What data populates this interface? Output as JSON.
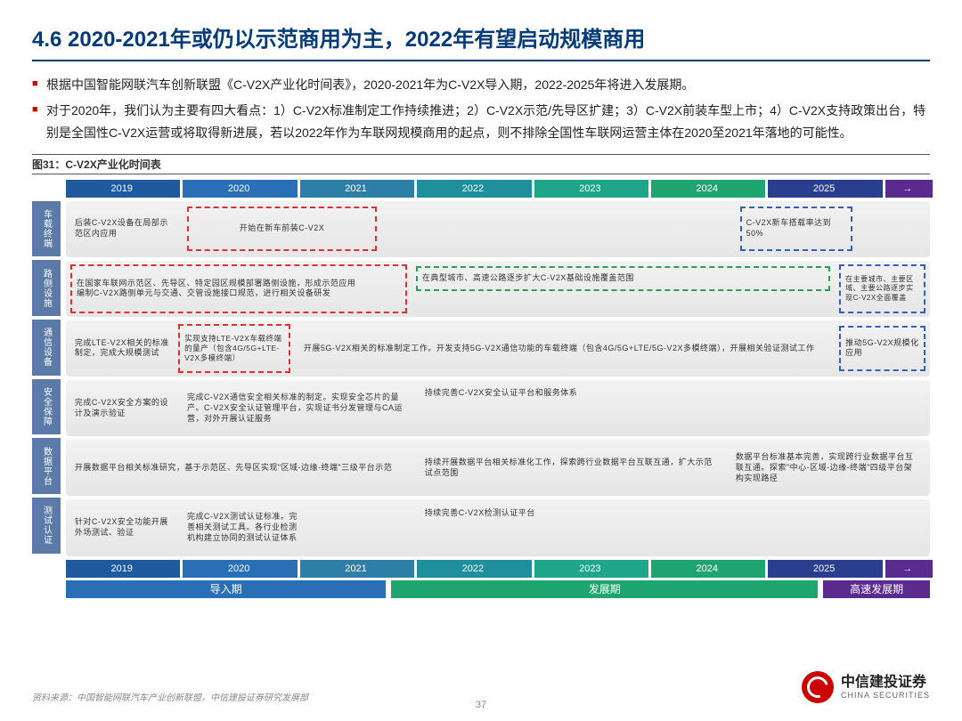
{
  "title": "4.6 2020-2021年或仍以示范商用为主，2022年有望启动规模商用",
  "bullets": [
    "根据中国智能网联汽车创新联盟《C-V2X产业化时间表》，2020-2021年为C-V2X导入期，2022-2025年将进入发展期。",
    "对于2020年，我们认为主要有四大看点：1）C-V2X标准制定工作持续推进；2）C-V2X示范/先导区扩建；3）C-V2X前装车型上市；4）C-V2X支持政策出台，特别是全国性C-V2X运营或将取得新进展，若以2022年作为车联网规模商用的起点，则不排除全国性车联网运营主体在2020至2021年落地的可能性。"
  ],
  "figLabel": "图31：C-V2X产业化时间表",
  "years": [
    "2019",
    "2020",
    "2021",
    "2022",
    "2023",
    "2024",
    "2025",
    "→"
  ],
  "yearClasses": [
    "yc-2019",
    "yc-2020",
    "yc-2021",
    "yc-2022",
    "yc-2023",
    "yc-2024",
    "yc-2025",
    "yc-end"
  ],
  "rowLabels": [
    "车载终端",
    "路侧设施",
    "通信设备",
    "安全保障",
    "数据平台",
    "测试认证"
  ],
  "rows": {
    "r0": {
      "c0": "后装C-V2X设备在局部示范区内应用",
      "c1": "开始在新车前装C-V2X",
      "c2": "C-V2X新车搭载率达到50%"
    },
    "r1": {
      "c0": "在国家车联网示范区、先导区、特定园区规模部署路侧设施，形成示范应用\n编制C-V2X路侧单元与交通、交管设施接口规范，进行相关设备研发",
      "c1": "在典型城市、高速公路逐步扩大C-V2X基础设施覆盖范围",
      "c2": "在主要城市、主要区域、主要公路逐步实现C-V2X全面覆盖"
    },
    "r2": {
      "c0": "完成LTE-V2X相关的标准制定，完成大规模测试",
      "c1": "实现支持LTE-V2X车载终端的量产（包含4G/5G+LTE-V2X多模终端）",
      "c2": "开展5G-V2X相关的标准制定工作。开发支持5G-V2X通信功能的车载终端（包含4G/5G+LTE/5G-V2X多模终端），开展相关验证测试工作",
      "c3": "推动5G-V2X规模化应用"
    },
    "r3": {
      "c0": "完成C-V2X安全方案的设计及演示验证",
      "c1": "完成C-V2X通信安全相关标准的制定。实现安全芯片的量产。C-V2X安全认证管理平台，实现证书分发管理与CA运营，对外开展认证服务",
      "c2": "持续完善C-V2X安全认证平台和服务体系"
    },
    "r4": {
      "c0": "开展数据平台相关标准研究，基于示范区、先导区实现\"区域-边缘-终端\"三级平台示范",
      "c1": "持续开展数据平台相关标准化工作，探索跨行业数据平台互联互通，扩大示范试点范围",
      "c2": "数据平台标准基本完善，实现跨行业数据平台互联互通。探索\"中心-区域-边缘-终端\"四级平台架构实现路径"
    },
    "r5": {
      "c0": "针对C-V2X安全功能开展外场测试、验证",
      "c1": "完成C-V2X测试认证标准。完善相关测试工具。各行业检测机构建立协同的测试认证体系",
      "c2": "持续完善C-V2X检测认证平台"
    }
  },
  "phases": [
    "导入期",
    "发展期",
    "高速发展期"
  ],
  "source": "资料来源：中国智能网联汽车产业创新联盟，中信建投证券研究发展部",
  "pageNum": "37",
  "logo": {
    "cn": "中信建投证券",
    "en": "CHINA SECURITIES"
  }
}
